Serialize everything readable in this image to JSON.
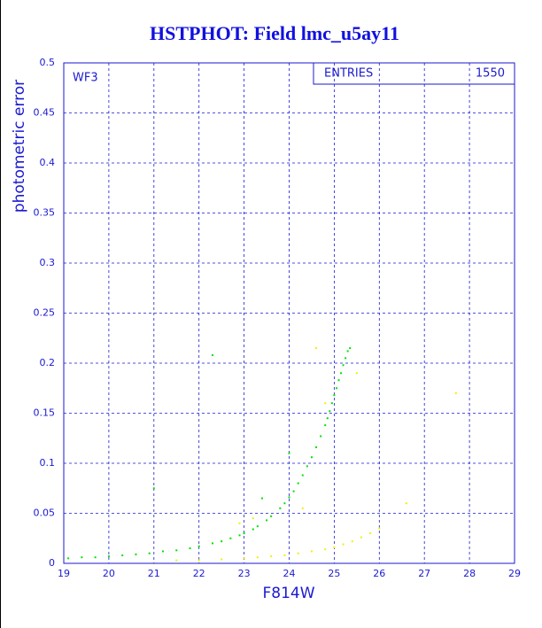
{
  "chart_data": {
    "type": "scatter",
    "title": "HSTPHOT: Field lmc_u5ay11",
    "x_label": "F814W",
    "y_label": "photometric error",
    "annotation": "WF3",
    "stats": {
      "label": "ENTRIES",
      "value": 1550
    },
    "xlim": [
      19,
      29
    ],
    "xticks": [
      19,
      20,
      21,
      22,
      23,
      24,
      25,
      26,
      27,
      28,
      29
    ],
    "ylim": [
      0,
      0.5
    ],
    "yticks": [
      0,
      0.05,
      0.1,
      0.15,
      0.2,
      0.25,
      0.3,
      0.35,
      0.4,
      0.45,
      0.5
    ],
    "grid": true,
    "series": [
      {
        "color": "#00e000",
        "x": [
          19.1,
          19.4,
          19.7,
          20.0,
          20.3,
          20.6,
          20.9,
          21.2,
          21.5,
          21.8,
          22.0,
          22.3,
          22.5,
          22.7,
          22.9,
          23.0,
          23.2,
          23.3,
          23.5,
          23.6,
          23.8,
          23.9,
          24.0,
          24.1,
          24.2,
          24.3,
          24.4,
          24.5,
          24.6,
          24.7,
          24.8,
          24.85,
          24.9,
          24.95,
          25.0,
          25.05,
          25.1,
          25.15,
          25.2,
          25.25,
          25.3,
          25.35,
          22.3,
          23.4,
          21.0,
          24.0
        ],
        "values": [
          0.005,
          0.006,
          0.006,
          0.007,
          0.008,
          0.009,
          0.01,
          0.012,
          0.013,
          0.015,
          0.017,
          0.02,
          0.022,
          0.025,
          0.028,
          0.03,
          0.034,
          0.037,
          0.043,
          0.047,
          0.055,
          0.06,
          0.066,
          0.072,
          0.08,
          0.088,
          0.097,
          0.106,
          0.116,
          0.127,
          0.138,
          0.145,
          0.152,
          0.16,
          0.168,
          0.175,
          0.183,
          0.19,
          0.198,
          0.205,
          0.212,
          0.215,
          0.208,
          0.065,
          0.075,
          0.11
        ]
      },
      {
        "color": "#f0f000",
        "x": [
          21.5,
          22.0,
          22.5,
          23.0,
          23.3,
          23.6,
          23.9,
          24.2,
          24.5,
          24.8,
          25.0,
          25.2,
          25.4,
          25.6,
          25.8,
          26.0,
          24.6,
          24.8,
          22.9,
          23.2,
          25.5,
          27.7,
          26.6,
          24.3
        ],
        "values": [
          0.003,
          0.003,
          0.004,
          0.005,
          0.006,
          0.007,
          0.008,
          0.01,
          0.012,
          0.014,
          0.016,
          0.019,
          0.022,
          0.026,
          0.03,
          0.035,
          0.215,
          0.16,
          0.04,
          0.045,
          0.19,
          0.17,
          0.06,
          0.055
        ]
      }
    ]
  }
}
